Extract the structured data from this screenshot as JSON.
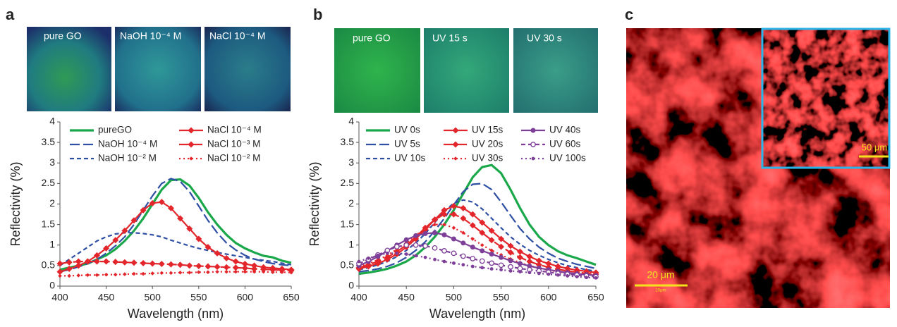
{
  "panels": [
    {
      "label": "a",
      "photos": [
        "pure GO",
        "NaOH 10⁻⁴ M",
        "NaCl 10⁻⁴ M"
      ]
    },
    {
      "label": "b",
      "photos": [
        "pure GO",
        "UV 15 s",
        "UV 30 s"
      ]
    },
    {
      "label": "c",
      "scale_bar": "20 μm",
      "scale_bar_small": "20μm",
      "inset_scale_bar": "50 μm"
    }
  ],
  "chart_data": [
    {
      "type": "line",
      "xlabel": "Wavelength (nm)",
      "ylabel": "Reflectivity (%)",
      "x": [
        400,
        410,
        420,
        430,
        440,
        450,
        460,
        470,
        480,
        490,
        500,
        510,
        520,
        530,
        540,
        550,
        560,
        570,
        580,
        590,
        600,
        610,
        620,
        630,
        640,
        650
      ],
      "xlim": [
        400,
        650
      ],
      "xticks": [
        400,
        450,
        500,
        550,
        600,
        650
      ],
      "ylim": [
        0,
        4
      ],
      "yticks": [
        0,
        0.5,
        1,
        1.5,
        2,
        2.5,
        3,
        3.5,
        4
      ],
      "series": [
        {
          "name": "pureGO",
          "color": "#1aa84a",
          "dash": "solid",
          "marker": "none",
          "values": [
            0.4,
            0.45,
            0.5,
            0.55,
            0.65,
            0.75,
            0.9,
            1.1,
            1.35,
            1.65,
            2.0,
            2.35,
            2.58,
            2.6,
            2.45,
            2.15,
            1.8,
            1.5,
            1.25,
            1.05,
            0.92,
            0.82,
            0.74,
            0.7,
            0.62,
            0.57
          ]
        },
        {
          "name": "NaOH 10⁻⁴ M",
          "color": "#2e4fa3",
          "dash": "long",
          "marker": "none",
          "values": [
            0.35,
            0.4,
            0.47,
            0.55,
            0.65,
            0.8,
            0.98,
            1.2,
            1.5,
            1.85,
            2.2,
            2.5,
            2.62,
            2.55,
            2.3,
            1.95,
            1.6,
            1.3,
            1.05,
            0.88,
            0.75,
            0.66,
            0.6,
            0.55,
            0.52,
            0.5
          ]
        },
        {
          "name": "NaOH 10⁻² M",
          "color": "#2e4fa3",
          "dash": "short",
          "marker": "none",
          "values": [
            0.5,
            0.65,
            0.8,
            0.95,
            1.1,
            1.2,
            1.27,
            1.3,
            1.3,
            1.28,
            1.25,
            1.2,
            1.12,
            1.05,
            0.98,
            0.92,
            0.87,
            0.82,
            0.78,
            0.74,
            0.7,
            0.66,
            0.63,
            0.6,
            0.56,
            0.52
          ]
        },
        {
          "name": "NaCl  10⁻⁴ M",
          "color": "#e3262b",
          "dash": "solid",
          "marker": "diamond",
          "values": [
            0.35,
            0.42,
            0.5,
            0.6,
            0.75,
            0.92,
            1.12,
            1.35,
            1.6,
            1.85,
            2.02,
            2.05,
            1.9,
            1.65,
            1.4,
            1.15,
            0.95,
            0.8,
            0.68,
            0.6,
            0.54,
            0.5,
            0.46,
            0.44,
            0.42,
            0.4
          ]
        },
        {
          "name": "NaCl  10⁻³ M",
          "color": "#e3262b",
          "dash": "long",
          "marker": "diamond",
          "values": [
            0.55,
            0.58,
            0.6,
            0.6,
            0.6,
            0.6,
            0.59,
            0.58,
            0.57,
            0.56,
            0.55,
            0.54,
            0.53,
            0.52,
            0.5,
            0.49,
            0.48,
            0.47,
            0.46,
            0.45,
            0.44,
            0.42,
            0.41,
            0.4,
            0.39,
            0.38
          ]
        },
        {
          "name": "NaCl  10⁻² M",
          "color": "#e3262b",
          "dash": "dot",
          "marker": "small-diamond",
          "values": [
            0.25,
            0.25,
            0.26,
            0.27,
            0.27,
            0.28,
            0.28,
            0.29,
            0.3,
            0.3,
            0.31,
            0.32,
            0.32,
            0.33,
            0.33,
            0.34,
            0.34,
            0.35,
            0.35,
            0.35,
            0.35,
            0.35,
            0.35,
            0.34,
            0.34,
            0.33
          ]
        }
      ]
    },
    {
      "type": "line",
      "xlabel": "Wavelength (nm)",
      "ylabel": "Reflectivity (%)",
      "x": [
        400,
        410,
        420,
        430,
        440,
        450,
        460,
        470,
        480,
        490,
        500,
        510,
        520,
        530,
        540,
        550,
        560,
        570,
        580,
        590,
        600,
        610,
        620,
        630,
        640,
        650
      ],
      "xlim": [
        400,
        650
      ],
      "xticks": [
        400,
        450,
        500,
        550,
        600,
        650
      ],
      "ylim": [
        0,
        4
      ],
      "yticks": [
        0,
        0.5,
        1,
        1.5,
        2,
        2.5,
        3,
        3.5,
        4
      ],
      "series": [
        {
          "name": "UV 0s",
          "color": "#1aa84a",
          "dash": "solid",
          "marker": "none",
          "values": [
            0.3,
            0.33,
            0.37,
            0.42,
            0.5,
            0.6,
            0.75,
            0.95,
            1.2,
            1.5,
            1.85,
            2.25,
            2.65,
            2.9,
            2.95,
            2.75,
            2.35,
            1.9,
            1.5,
            1.2,
            1.0,
            0.85,
            0.75,
            0.68,
            0.6,
            0.52
          ]
        },
        {
          "name": "UV 5s",
          "color": "#2e4fa3",
          "dash": "long",
          "marker": "none",
          "values": [
            0.35,
            0.38,
            0.42,
            0.48,
            0.57,
            0.7,
            0.87,
            1.08,
            1.35,
            1.65,
            1.98,
            2.3,
            2.48,
            2.5,
            2.35,
            2.05,
            1.72,
            1.4,
            1.15,
            0.95,
            0.8,
            0.68,
            0.6,
            0.53,
            0.48,
            0.43
          ]
        },
        {
          "name": "UV 10s",
          "color": "#2e4fa3",
          "dash": "short",
          "marker": "none",
          "values": [
            0.4,
            0.45,
            0.52,
            0.6,
            0.72,
            0.87,
            1.05,
            1.28,
            1.55,
            1.82,
            2.02,
            2.1,
            2.05,
            1.88,
            1.65,
            1.42,
            1.2,
            1.02,
            0.87,
            0.75,
            0.65,
            0.57,
            0.5,
            0.45,
            0.4,
            0.36
          ]
        },
        {
          "name": "UV 15s",
          "color": "#e3262b",
          "dash": "solid",
          "marker": "diamond",
          "values": [
            0.42,
            0.48,
            0.55,
            0.65,
            0.78,
            0.95,
            1.15,
            1.38,
            1.62,
            1.85,
            1.95,
            1.9,
            1.75,
            1.55,
            1.35,
            1.15,
            0.98,
            0.84,
            0.72,
            0.62,
            0.55,
            0.48,
            0.43,
            0.39,
            0.36,
            0.33
          ]
        },
        {
          "name": "UV 20s",
          "color": "#e3262b",
          "dash": "long",
          "marker": "diamond",
          "values": [
            0.45,
            0.52,
            0.6,
            0.7,
            0.84,
            1.0,
            1.2,
            1.42,
            1.62,
            1.75,
            1.75,
            1.65,
            1.48,
            1.3,
            1.12,
            0.96,
            0.82,
            0.7,
            0.6,
            0.52,
            0.46,
            0.41,
            0.37,
            0.34,
            0.31,
            0.29
          ]
        },
        {
          "name": "UV 30s",
          "color": "#e3262b",
          "dash": "dot",
          "marker": "small-diamond",
          "values": [
            0.48,
            0.55,
            0.64,
            0.75,
            0.9,
            1.06,
            1.24,
            1.4,
            1.5,
            1.5,
            1.42,
            1.3,
            1.15,
            1.0,
            0.87,
            0.76,
            0.66,
            0.57,
            0.5,
            0.44,
            0.39,
            0.35,
            0.32,
            0.3,
            0.28,
            0.26
          ]
        },
        {
          "name": "UV 40s",
          "color": "#7d3f98",
          "dash": "solid",
          "marker": "circle",
          "values": [
            0.5,
            0.6,
            0.72,
            0.86,
            1.0,
            1.13,
            1.23,
            1.28,
            1.3,
            1.25,
            1.15,
            1.05,
            0.95,
            0.86,
            0.78,
            0.7,
            0.62,
            0.55,
            0.49,
            0.44,
            0.4,
            0.36,
            0.33,
            0.3,
            0.28,
            0.26
          ]
        },
        {
          "name": "UV 60s",
          "color": "#7d3f98",
          "dash": "short",
          "marker": "open-circle",
          "values": [
            0.55,
            0.65,
            0.76,
            0.87,
            0.96,
            1.0,
            1.0,
            0.98,
            0.93,
            0.86,
            0.8,
            0.73,
            0.67,
            0.61,
            0.56,
            0.51,
            0.47,
            0.43,
            0.4,
            0.37,
            0.34,
            0.31,
            0.29,
            0.27,
            0.25,
            0.23
          ]
        },
        {
          "name": "UV 100s",
          "color": "#7d3f98",
          "dash": "dot",
          "marker": "small-circle",
          "values": [
            0.6,
            0.68,
            0.75,
            0.8,
            0.8,
            0.78,
            0.74,
            0.7,
            0.65,
            0.6,
            0.56,
            0.52,
            0.48,
            0.45,
            0.42,
            0.4,
            0.37,
            0.35,
            0.33,
            0.31,
            0.29,
            0.27,
            0.25,
            0.23,
            0.21,
            0.2
          ]
        }
      ]
    }
  ]
}
